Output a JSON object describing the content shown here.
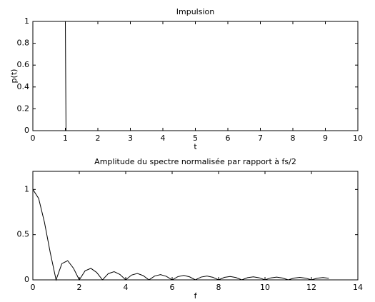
{
  "chart_data": [
    {
      "type": "line",
      "title": "Impulsion",
      "x_label": "t",
      "y_label": "p(t)",
      "series": [
        {
          "color": "#000000",
          "x": [
            0,
            1,
            1.02,
            10
          ],
          "values": [
            1,
            1,
            0,
            0
          ]
        }
      ],
      "xlim": [
        0,
        10
      ],
      "ylim": [
        0,
        1
      ],
      "xticks": [
        0,
        1,
        2,
        3,
        4,
        5,
        6,
        7,
        8,
        9,
        10
      ],
      "yticks": [
        0,
        0.2,
        0.4,
        0.6,
        0.8,
        1
      ]
    },
    {
      "type": "line",
      "title": "Amplitude du spectre normalisée par rapport à fs/2",
      "x_label": "f",
      "series": [
        {
          "color": "#000000",
          "x": [
            0,
            0.25,
            0.5,
            0.75,
            1,
            1.25,
            1.5,
            1.75,
            2,
            2.25,
            2.5,
            2.75,
            3,
            3.25,
            3.5,
            3.75,
            4,
            4.25,
            4.5,
            4.75,
            5,
            5.25,
            5.5,
            5.75,
            6,
            6.25,
            6.5,
            6.75,
            7,
            7.25,
            7.5,
            7.75,
            8,
            8.25,
            8.5,
            8.75,
            9,
            9.25,
            9.5,
            9.75,
            10,
            10.25,
            10.5,
            10.75,
            11,
            11.25,
            11.5,
            11.75,
            12,
            12.25,
            12.5,
            12.75
          ],
          "values": [
            1,
            0.9003,
            0.6366,
            0.3001,
            0,
            0.1801,
            0.2122,
            0.1286,
            0,
            0.1,
            0.1273,
            0.0818,
            0,
            0.0693,
            0.0909,
            0.06,
            0,
            0.053,
            0.0707,
            0.0474,
            0,
            0.0429,
            0.0579,
            0.0391,
            0,
            0.036,
            0.049,
            0.0333,
            0,
            0.031,
            0.0424,
            0.029,
            0,
            0.0273,
            0.0374,
            0.0257,
            0,
            0.0243,
            0.0335,
            0.0231,
            0,
            0.022,
            0.0303,
            0.0209,
            0,
            0.02,
            0.0277,
            0.0192,
            0,
            0.0184,
            0.0255,
            0.0177
          ]
        }
      ],
      "xlim": [
        0,
        14
      ],
      "ylim": [
        0,
        1.2
      ],
      "xticks": [
        0,
        2,
        4,
        6,
        8,
        10,
        12,
        14
      ],
      "yticks": [
        0,
        0.5,
        1
      ]
    }
  ]
}
